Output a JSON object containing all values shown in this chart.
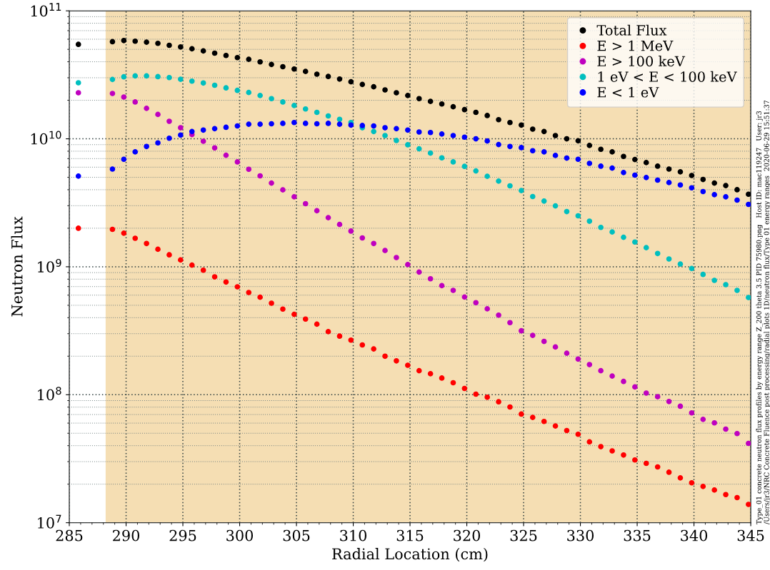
{
  "chart_data": {
    "type": "scatter",
    "xlabel": "Radial Location (cm)",
    "ylabel": "Neutron Flux",
    "x": [
      285.8,
      288.8,
      289.8,
      290.8,
      291.8,
      292.8,
      293.8,
      294.8,
      295.8,
      296.8,
      297.8,
      298.8,
      299.8,
      300.8,
      301.8,
      302.8,
      303.8,
      304.8,
      305.8,
      306.8,
      307.8,
      308.8,
      309.8,
      310.8,
      311.8,
      312.8,
      313.8,
      314.8,
      315.8,
      316.8,
      317.8,
      318.8,
      319.8,
      320.8,
      321.8,
      322.8,
      323.8,
      324.8,
      325.8,
      326.8,
      327.8,
      328.8,
      329.8,
      330.8,
      331.8,
      332.8,
      333.8,
      334.8,
      335.8,
      336.8,
      337.8,
      338.8,
      339.8,
      340.8,
      341.8,
      342.8,
      343.8,
      344.8
    ],
    "series": [
      {
        "name": "Total Flux",
        "color": "#000000",
        "values": [
          54700000000.0,
          57400000000.0,
          58600000000.0,
          57900000000.0,
          56900000000.0,
          55700000000.0,
          53800000000.0,
          52200000000.0,
          50500000000.0,
          48600000000.0,
          46700000000.0,
          44800000000.0,
          43100000000.0,
          41800000000.0,
          39900000000.0,
          38100000000.0,
          36600000000.0,
          35100000000.0,
          33600000000.0,
          32000000000.0,
          30700000000.0,
          29300000000.0,
          27900000000.0,
          26600000000.0,
          25500000000.0,
          24100000000.0,
          22900000000.0,
          21800000000.0,
          20600000000.0,
          19600000000.0,
          18700000000.0,
          17800000000.0,
          16900000000.0,
          16100000000.0,
          15200000000.0,
          14100000000.0,
          13400000000.0,
          12800000000.0,
          11900000000.0,
          11400000000.0,
          10600000000.0,
          10000000000.0,
          9650000000.0,
          8870000000.0,
          8280000000.0,
          7900000000.0,
          7280000000.0,
          6890000000.0,
          6520000000.0,
          6110000000.0,
          5800000000.0,
          5520000000.0,
          5170000000.0,
          4810000000.0,
          4510000000.0,
          4310000000.0,
          4000000000.0,
          3690000000.0
        ]
      },
      {
        "name": "E > 1 MeV",
        "color": "#ff0000",
        "values": [
          2000000000.0,
          1960000000.0,
          1830000000.0,
          1670000000.0,
          1520000000.0,
          1370000000.0,
          1240000000.0,
          1130000000.0,
          1030000000.0,
          940000000.0,
          834000000.0,
          760000000.0,
          697000000.0,
          629000000.0,
          578000000.0,
          519000000.0,
          467000000.0,
          425000000.0,
          390000000.0,
          356000000.0,
          311000000.0,
          287000000.0,
          267000000.0,
          245000000.0,
          228000000.0,
          200000000.0,
          184000000.0,
          170000000.0,
          154000000.0,
          146000000.0,
          135000000.0,
          124000000.0,
          112000000.0,
          101000000.0,
          95600000.0,
          88100000.0,
          80200000.0,
          70600000.0,
          66500000.0,
          61800000.0,
          57000000.0,
          52500000.0,
          49100000.0,
          42800000.0,
          39300000.0,
          36400000.0,
          33800000.0,
          30900000.0,
          29100000.0,
          27300000.0,
          24800000.0,
          22400000.0,
          20500000.0,
          19200000.0,
          18000000.0,
          16600000.0,
          15700000.0,
          13900000.0
        ]
      },
      {
        "name": "E > 100 keV",
        "color": "#bf00bf",
        "values": [
          22900000000.0,
          22600000000.0,
          21200000000.0,
          19400000000.0,
          17300000000.0,
          15500000000.0,
          13700000000.0,
          12200000000.0,
          10800000000.0,
          9570000000.0,
          8490000000.0,
          7440000000.0,
          6600000000.0,
          5780000000.0,
          5130000000.0,
          4510000000.0,
          3990000000.0,
          3520000000.0,
          3110000000.0,
          2740000000.0,
          2420000000.0,
          2140000000.0,
          1900000000.0,
          1680000000.0,
          1520000000.0,
          1340000000.0,
          1180000000.0,
          1040000000.0,
          909000000.0,
          806000000.0,
          712000000.0,
          654000000.0,
          580000000.0,
          524000000.0,
          469000000.0,
          419000000.0,
          366000000.0,
          316000000.0,
          291000000.0,
          261000000.0,
          236000000.0,
          211000000.0,
          190000000.0,
          172000000.0,
          154000000.0,
          140000000.0,
          127000000.0,
          115000000.0,
          103000000.0,
          96400000.0,
          88500000.0,
          81300000.0,
          72100000.0,
          64200000.0,
          60300000.0,
          53900000.0,
          49700000.0,
          41700000.0
        ]
      },
      {
        "name": "1 eV < E < 100 keV",
        "color": "#00bfbf",
        "values": [
          27400000000.0,
          29100000000.0,
          30500000000.0,
          31000000000.0,
          31000000000.0,
          30600000000.0,
          30100000000.0,
          29200000000.0,
          28200000000.0,
          27300000000.0,
          26200000000.0,
          25000000000.0,
          23900000000.0,
          23000000000.0,
          21800000000.0,
          20600000000.0,
          19400000000.0,
          18200000000.0,
          17100000000.0,
          16100000000.0,
          15100000000.0,
          14200000000.0,
          13400000000.0,
          12200000000.0,
          11400000000.0,
          10600000000.0,
          9700000000.0,
          8980000000.0,
          8350000000.0,
          7730000000.0,
          7100000000.0,
          6600000000.0,
          6090000000.0,
          5610000000.0,
          5090000000.0,
          4670000000.0,
          4290000000.0,
          3940000000.0,
          3540000000.0,
          3260000000.0,
          2990000000.0,
          2700000000.0,
          2500000000.0,
          2270000000.0,
          2030000000.0,
          1870000000.0,
          1700000000.0,
          1560000000.0,
          1410000000.0,
          1270000000.0,
          1150000000.0,
          1050000000.0,
          969000000.0,
          871000000.0,
          783000000.0,
          725000000.0,
          654000000.0,
          575000000.0
        ]
      },
      {
        "name": "E < 1 eV",
        "color": "#0000ff",
        "values": [
          5110000000.0,
          5800000000.0,
          6920000000.0,
          7900000000.0,
          8710000000.0,
          9290000000.0,
          10100000000.0,
          10700000000.0,
          11400000000.0,
          11700000000.0,
          12000000000.0,
          12300000000.0,
          12600000000.0,
          13000000000.0,
          13000000000.0,
          13100000000.0,
          13200000000.0,
          13400000000.0,
          13200000000.0,
          13100000000.0,
          13200000000.0,
          13000000000.0,
          12800000000.0,
          12700000000.0,
          12600000000.0,
          12200000000.0,
          12000000000.0,
          11700000000.0,
          11300000000.0,
          11200000000.0,
          10900000000.0,
          10600000000.0,
          10300000000.0,
          10000000000.0,
          9610000000.0,
          9020000000.0,
          8710000000.0,
          8530000000.0,
          8070000000.0,
          7900000000.0,
          7410000000.0,
          7070000000.0,
          6920000000.0,
          6430000000.0,
          6110000000.0,
          5900000000.0,
          5450000000.0,
          5200000000.0,
          4980000000.0,
          4750000000.0,
          4550000000.0,
          4360000000.0,
          4140000000.0,
          3870000000.0,
          3660000000.0,
          3520000000.0,
          3320000000.0,
          3070000000.0
        ]
      }
    ],
    "log": "y",
    "xlim": [
      285,
      345
    ],
    "ylim": [
      10000000.0,
      100000000000.0
    ],
    "xticks": [
      285,
      290,
      295,
      300,
      305,
      310,
      315,
      320,
      325,
      330,
      335,
      340,
      345
    ],
    "yticks": [
      {
        "value": 10000000.0,
        "label": "10$^{7}$"
      },
      {
        "value": 100000000.0,
        "label": "10$^{8}$"
      },
      {
        "value": 1000000000.0,
        "label": "10$^{9}$"
      },
      {
        "value": 10000000000.0,
        "label": "10$^{10}$"
      },
      {
        "value": 100000000000.0,
        "label": "10$^{11}$"
      }
    ],
    "bands": [
      {
        "axis": "x",
        "from": 288.2,
        "to": 345,
        "color": "#f5deb3"
      }
    ],
    "grid": true,
    "legend": "top right",
    "marker": "circle",
    "annotations": [
      "Type_01 concrete neutron flux profiles by energy range Z_200 theta 3.5 PID 75980.png   Host ID: mac119247   User: jr3",
      "/Users/jr3/NRC Concrete Fluence post processing/radial plots 1D/neutron flux/Type 01 energy ranges  2020-06-29 15:51:37"
    ]
  }
}
